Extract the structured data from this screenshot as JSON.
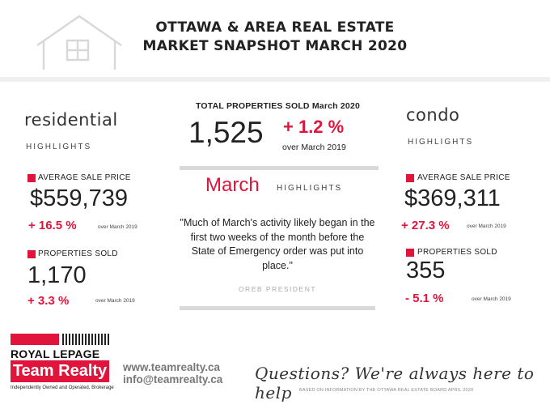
{
  "header": {
    "title_line1": "OTTAWA & AREA REAL ESTATE",
    "title_line2": "MARKET SNAPSHOT MARCH 2020"
  },
  "residential": {
    "heading": "residential",
    "subheading": "HIGHLIGHTS",
    "avg_price_label": "AVERAGE SALE PRICE",
    "avg_price": "$559,739",
    "avg_price_change": "+ 16.5 %",
    "avg_price_note": "over March 2019",
    "sold_label": "PROPERTIES SOLD",
    "sold": "1,170",
    "sold_change": "+ 3.3 %",
    "sold_note": "over March 2019"
  },
  "total": {
    "label": "TOTAL PROPERTIES SOLD March 2020",
    "value": "1,525",
    "change": "+ 1.2 %",
    "note": "over March 2019"
  },
  "march": {
    "heading": "March",
    "subheading": "HIGHLIGHTS",
    "quote": "\"Much of March's activity likely began in the first two weeks of the month before the State of Emergency order was put into place.\"",
    "attribution": "OREB PRESIDENT"
  },
  "condo": {
    "heading": "condo",
    "subheading": "HIGHLIGHTS",
    "avg_price_label": "AVERAGE SALE PRICE",
    "avg_price": "$369,311",
    "avg_price_change": "+ 27.3 %",
    "avg_price_note": "over  March  2019",
    "sold_label": "PROPERTIES SOLD",
    "sold": "355",
    "sold_change": "- 5.1 %",
    "sold_note": "over March 2019"
  },
  "brand": {
    "line1": "ROYAL LEPAGE",
    "line2": "Team Realty",
    "tagline": "Independently Owned and Operated, Brokerage"
  },
  "contact": {
    "website": "www.teamrealty.ca",
    "email": "info@teamrealty.ca"
  },
  "footer": {
    "slogan": "Questions? We're always here to help",
    "source": "BASED ON INFORMATION BY THE OTTAWA REAL ESTATE BOARD APRIL 2020"
  },
  "colors": {
    "accent": "#e1143c",
    "band": "#efefef",
    "bar": "#d9d9d9"
  },
  "icons": {
    "logo": "house-outline-icon"
  }
}
